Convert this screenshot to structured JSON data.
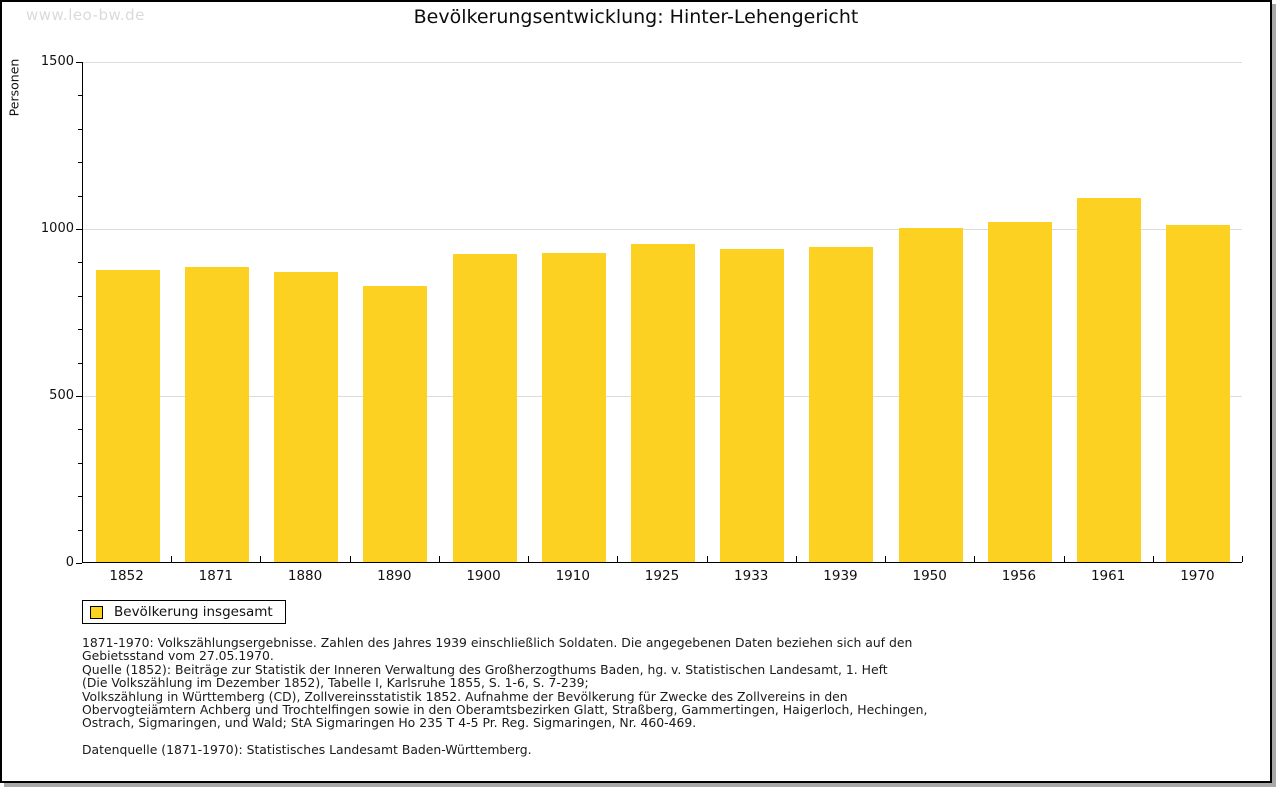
{
  "watermark": "www.leo-bw.de",
  "title": "Bevölkerungsentwicklung: Hinter-Lehengericht",
  "legend": {
    "label": "Bevölkerung insgesamt"
  },
  "colors": {
    "bar": "#fcd122",
    "grid": "#dcdcdc",
    "axis": "#000000",
    "watermark": "#dadada"
  },
  "chart_data": {
    "type": "bar",
    "title": "Bevölkerungsentwicklung: Hinter-Lehengericht",
    "categories": [
      "1852",
      "1871",
      "1880",
      "1890",
      "1900",
      "1910",
      "1925",
      "1933",
      "1939",
      "1950",
      "1956",
      "1961",
      "1970"
    ],
    "series": [
      {
        "name": "Bevölkerung insgesamt",
        "values": [
          875,
          884,
          868,
          826,
          922,
          925,
          952,
          938,
          943,
          1000,
          1018,
          1090,
          1010
        ]
      }
    ],
    "xlabel": "",
    "ylabel": "Personen",
    "ylim": [
      0,
      1500
    ],
    "yticks": [
      0,
      500,
      1000,
      1500
    ],
    "minor_tick_step": 100,
    "grid": true,
    "legend_position": "bottom-left"
  },
  "footer": {
    "lines": [
      "1871-1970: Volkszählungsergebnisse. Zahlen des Jahres 1939 einschließlich Soldaten. Die angegebenen Daten beziehen sich auf den",
      "Gebietsstand vom 27.05.1970.",
      "Quelle (1852): Beiträge zur Statistik der Inneren Verwaltung des Großherzogthums Baden, hg. v. Statistischen Landesamt, 1. Heft",
      "(Die Volkszählung im Dezember 1852), Tabelle I, Karlsruhe 1855, S. 1-6, S. 7-239;",
      "Volkszählung in Württemberg (CD), Zollvereinsstatistik 1852. Aufnahme der Bevölkerung für Zwecke des Zollvereins in den",
      "Obervogteiämtern Achberg und Trochtelfingen sowie in den Oberamtsbezirken Glatt, Straßberg, Gammertingen, Haigerloch, Hechingen,",
      "Ostrach, Sigmaringen, und Wald; StA Sigmaringen Ho 235 T 4-5 Pr. Reg. Sigmaringen, Nr. 460-469."
    ],
    "datasource": "Datenquelle (1871-1970): Statistisches Landesamt Baden-Württemberg."
  }
}
